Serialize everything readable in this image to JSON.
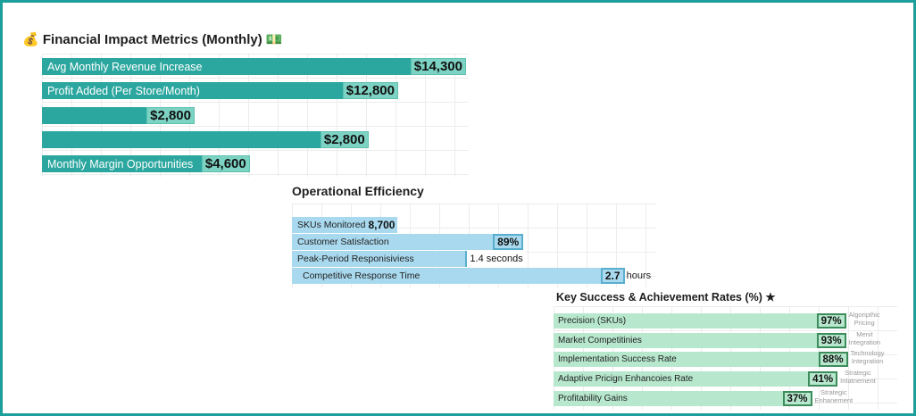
{
  "chart_data": [
    {
      "type": "bar",
      "title": "Financial Impact Metrics (Monthly)",
      "title_icons": [
        "money-bag-icon",
        "money-stack-icon"
      ],
      "categories": [
        "Avg Monthly Revenue Increase",
        "Profit Added (Per Store/Month)",
        "",
        "",
        "Monthly Margin Opportunities"
      ],
      "values": [
        "$14,300",
        "$12,800",
        "$2,800",
        "$2,800",
        "$4,600"
      ],
      "fill": [
        1.0,
        0.84,
        0.36,
        0.77,
        0.49
      ],
      "color": "#2ca79f",
      "grid": true
    },
    {
      "type": "bar",
      "title": "Operational Efficiency",
      "categories": [
        "SKUs Monitored",
        "Customer Satisfaction",
        "Peak-Period Responisiviess",
        "Competitive Response Time"
      ],
      "values": [
        "8,700",
        "89%",
        "1.4 seconds",
        "2.7"
      ],
      "units": [
        "",
        "",
        "",
        "hours"
      ],
      "fill": [
        0.28,
        0.64,
        0.48,
        0.92
      ],
      "color": "#a9d9ee",
      "grid": true
    },
    {
      "type": "bar",
      "title": "Key Success & Achievement Rates (%) ★",
      "categories": [
        "Precision (SKUs)",
        "Market Competitinies",
        "Implementation Success Rate",
        "Adaptive Pricign Enhancoies Rate",
        "Profitability Gains"
      ],
      "values": [
        "97%",
        "93%",
        "88%",
        "41%",
        "37%"
      ],
      "notes": [
        [
          "Algoripthic",
          "Pricing"
        ],
        [
          "Menit",
          "Integration"
        ],
        [
          "Technology",
          "Integration"
        ],
        [
          "Strategic",
          "Intatnement"
        ],
        [
          "Strategic",
          "Enhanement"
        ]
      ],
      "fill": [
        0.86,
        0.86,
        0.865,
        0.835,
        0.76
      ],
      "color": "#b7e7cd",
      "grid": true
    }
  ]
}
